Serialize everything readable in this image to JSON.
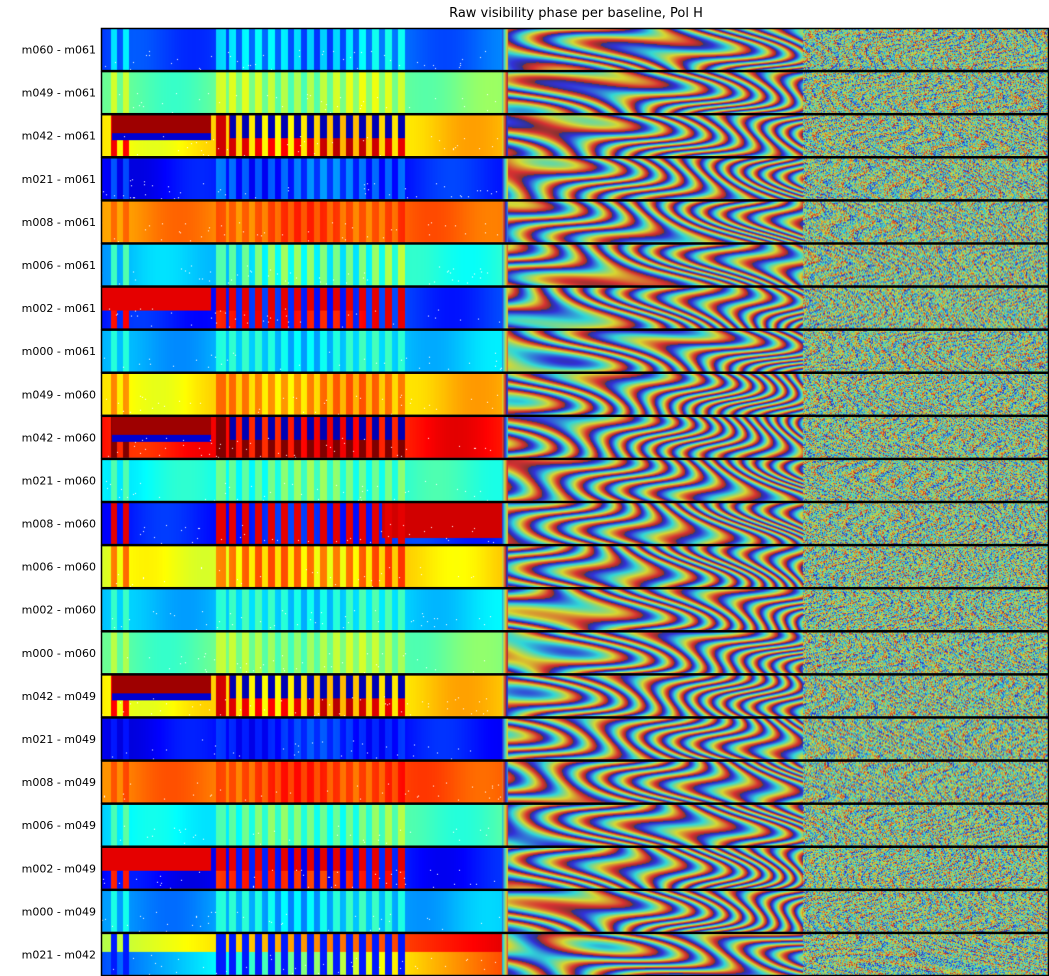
{
  "chart_data": {
    "type": "heatmap",
    "title": "Raw visibility phase per baseline, Pol H",
    "xlabel": "",
    "ylabel": "",
    "colormap": "jet",
    "colors": {
      "frame": "#000000",
      "background": "#ffffff"
    },
    "baselines": [
      "m060 - m061",
      "m049 - m061",
      "m042 - m061",
      "m021 - m061",
      "m008 - m061",
      "m006 - m061",
      "m002 - m061",
      "m000 - m061",
      "m049 - m060",
      "m042 - m060",
      "m021 - m060",
      "m008 - m060",
      "m006 - m060",
      "m002 - m060",
      "m000 - m060",
      "m042 - m049",
      "m021 - m049",
      "m008 - m049",
      "m006 - m049",
      "m002 - m049",
      "m000 - m049",
      "m021 - m042"
    ],
    "rows": [
      {
        "base": 0.18,
        "drift": 0.05,
        "stripe": 0.15,
        "wave": 0.8,
        "pattern": "plain"
      },
      {
        "base": 0.45,
        "drift": 0.05,
        "stripe": 0.1,
        "wave": 0.9,
        "pattern": "plain"
      },
      {
        "base": 0.62,
        "drift": 0.15,
        "stripe": 0.25,
        "wave": 1.0,
        "pattern": "band"
      },
      {
        "base": 0.12,
        "drift": 0.05,
        "stripe": 0.1,
        "wave": 1.2,
        "pattern": "plain"
      },
      {
        "base": 0.74,
        "drift": 0.04,
        "stripe": 0.06,
        "wave": 1.1,
        "pattern": "plain"
      },
      {
        "base": 0.3,
        "drift": 0.12,
        "stripe": 0.15,
        "wave": 1.0,
        "pattern": "plain"
      },
      {
        "base": 0.15,
        "drift": 0.05,
        "stripe": 0.7,
        "wave": 1.3,
        "pattern": "red_top"
      },
      {
        "base": 0.28,
        "drift": 0.05,
        "stripe": 0.1,
        "wave": 0.9,
        "pattern": "plain"
      },
      {
        "base": 0.62,
        "drift": 0.08,
        "stripe": 0.1,
        "wave": 1.4,
        "pattern": "plain"
      },
      {
        "base": 0.85,
        "drift": 0.05,
        "stripe": 0.25,
        "wave": 1.5,
        "pattern": "band"
      },
      {
        "base": 0.38,
        "drift": 0.05,
        "stripe": 0.1,
        "wave": 1.2,
        "pattern": "plain"
      },
      {
        "base": 0.15,
        "drift": 0.05,
        "stripe": 0.7,
        "wave": 1.3,
        "pattern": "red_right"
      },
      {
        "base": 0.6,
        "drift": 0.06,
        "stripe": 0.15,
        "wave": 1.4,
        "pattern": "plain"
      },
      {
        "base": 0.3,
        "drift": 0.04,
        "stripe": 0.1,
        "wave": 1.1,
        "pattern": "plain"
      },
      {
        "base": 0.45,
        "drift": 0.04,
        "stripe": 0.08,
        "wave": 1.0,
        "pattern": "plain"
      },
      {
        "base": 0.62,
        "drift": 0.15,
        "stripe": 0.25,
        "wave": 1.3,
        "pattern": "band"
      },
      {
        "base": 0.12,
        "drift": 0.03,
        "stripe": 0.05,
        "wave": 1.2,
        "pattern": "plain"
      },
      {
        "base": 0.76,
        "drift": 0.04,
        "stripe": 0.06,
        "wave": 1.1,
        "pattern": "plain"
      },
      {
        "base": 0.35,
        "drift": 0.1,
        "stripe": 0.1,
        "wave": 1.0,
        "pattern": "plain"
      },
      {
        "base": 0.12,
        "drift": 0.05,
        "stripe": 0.7,
        "wave": 1.4,
        "pattern": "red_top"
      },
      {
        "base": 0.25,
        "drift": 0.06,
        "stripe": 0.12,
        "wave": 1.2,
        "pattern": "plain"
      },
      {
        "base": 0.3,
        "drift": 0.5,
        "stripe": 0.3,
        "wave": 0.5,
        "pattern": "split"
      }
    ],
    "grid": false,
    "legend": "none"
  }
}
